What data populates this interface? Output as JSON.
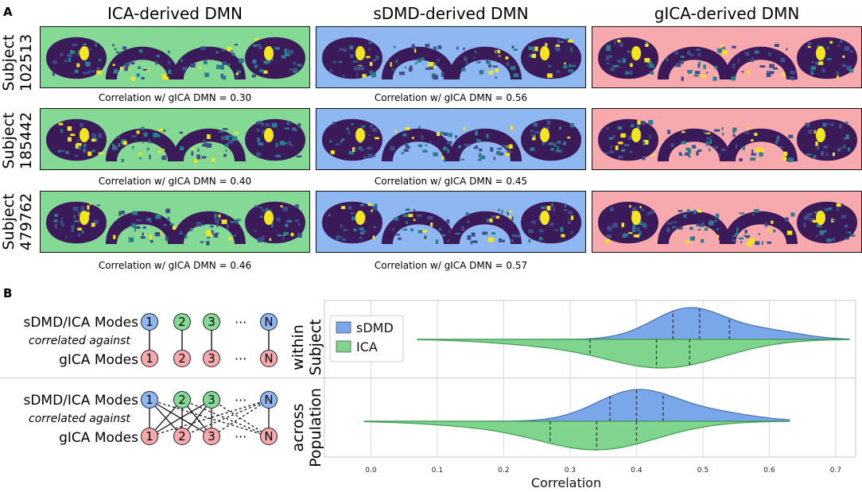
{
  "panel_a": {
    "letter": "A",
    "columns": [
      {
        "title": "ICA-derived DMN",
        "bg": "#84d994"
      },
      {
        "title": "sDMD-derived DMN",
        "bg": "#8fb8f2"
      },
      {
        "title": "gICA-derived DMN",
        "bg": "#f7a9ad"
      }
    ],
    "rows": [
      {
        "label_line1": "Subject",
        "label_line2": "102513",
        "corr_ica": "Correlation w/ gICA DMN = 0.30",
        "corr_sdmd": "Correlation w/ gICA DMN = 0.56"
      },
      {
        "label_line1": "Subject",
        "label_line2": "185442",
        "corr_ica": "Correlation w/ gICA DMN = 0.40",
        "corr_sdmd": "Correlation w/ gICA DMN = 0.45"
      },
      {
        "label_line1": "Subject",
        "label_line2": "479762",
        "corr_ica": "Correlation w/ gICA DMN = 0.46",
        "corr_sdmd": "Correlation w/ gICA DMN = 0.57"
      }
    ]
  },
  "panel_b": {
    "letter": "B",
    "top_diagram": {
      "upper_label": "sDMD/ICA Modes",
      "middle_label": "correlated against",
      "lower_label": "gICA Modes",
      "upper_nodes": [
        "1",
        "2",
        "3",
        "N"
      ],
      "lower_nodes": [
        "1",
        "2",
        "3",
        "N"
      ],
      "ellipsis": "···"
    },
    "bottom_diagram": {
      "upper_label": "sDMD/ICA Modes",
      "middle_label": "correlated against",
      "lower_label": "gICA Modes",
      "upper_nodes": [
        "1",
        "2",
        "3",
        "N"
      ],
      "lower_nodes": [
        "1",
        "2",
        "3",
        "N"
      ],
      "ellipsis": "···"
    },
    "node_colors": {
      "blue": "#8fb8f2",
      "green": "#84d994",
      "red": "#f7a9ad"
    }
  },
  "chart_data": {
    "type": "violin",
    "xlabel": "Correlation",
    "xlim": [
      -0.07,
      0.73
    ],
    "xticks": [
      "0.0",
      "0.1",
      "0.2",
      "0.3",
      "0.4",
      "0.5",
      "0.6",
      "0.7"
    ],
    "xtick_values": [
      0.0,
      0.1,
      0.2,
      0.3,
      0.4,
      0.5,
      0.6,
      0.7
    ],
    "legend": [
      {
        "name": "sDMD",
        "color": "#7aa6ea"
      },
      {
        "name": "ICA",
        "color": "#7fd58d"
      }
    ],
    "rows": [
      {
        "label_line1": "within",
        "label_line2": "Subject",
        "sdmd": {
          "range": [
            0.07,
            0.72
          ],
          "mode": 0.48,
          "quartiles": [
            0.455,
            0.495,
            0.54
          ]
        },
        "ica": {
          "range": [
            0.07,
            0.72
          ],
          "mode": 0.4,
          "quartiles": [
            0.33,
            0.43,
            0.48
          ]
        }
      },
      {
        "label_line1": "across",
        "label_line2": "Population",
        "sdmd": {
          "range": [
            -0.01,
            0.63
          ],
          "mode": 0.4,
          "quartiles": [
            0.36,
            0.4,
            0.44
          ]
        },
        "ica": {
          "range": [
            -0.01,
            0.63
          ],
          "mode": 0.38,
          "quartiles": [
            0.27,
            0.34,
            0.4
          ]
        }
      }
    ]
  }
}
